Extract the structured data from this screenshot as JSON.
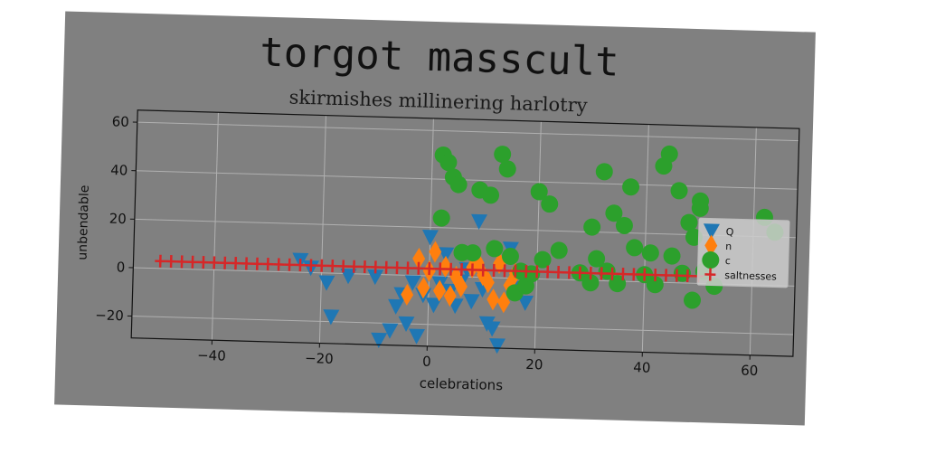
{
  "chart_data": {
    "type": "scatter",
    "title": "torgot masscult",
    "subtitle": "skirmishes millinering harlotry",
    "xlabel": "celebrations",
    "ylabel": "unbendable",
    "xlim": [
      -55,
      68
    ],
    "ylim": [
      -29,
      65
    ],
    "xticks": [
      -40,
      -20,
      0,
      20,
      40,
      60
    ],
    "yticks": [
      -20,
      0,
      20,
      40,
      60
    ],
    "grid": true,
    "legend_position": "right",
    "series": [
      {
        "name": "Q",
        "marker": "triangle-down",
        "color": "#1f77b4",
        "points": [
          [
            -24,
            5
          ],
          [
            -22,
            2
          ],
          [
            -19,
            -4
          ],
          [
            -18,
            -18
          ],
          [
            -15,
            -1
          ],
          [
            -10,
            -1
          ],
          [
            -9,
            -27
          ],
          [
            -7,
            -23
          ],
          [
            -6,
            -13
          ],
          [
            -5,
            -8
          ],
          [
            -4,
            -20
          ],
          [
            -3,
            -3
          ],
          [
            -2,
            -25
          ],
          [
            -1,
            -8
          ],
          [
            0,
            16
          ],
          [
            1,
            -12
          ],
          [
            2,
            -3
          ],
          [
            3,
            9
          ],
          [
            4,
            -6
          ],
          [
            5,
            -12
          ],
          [
            6,
            -2
          ],
          [
            7,
            3
          ],
          [
            8,
            -10
          ],
          [
            9,
            23
          ],
          [
            10,
            -5
          ],
          [
            11,
            -19
          ],
          [
            12,
            -21
          ],
          [
            13,
            -28
          ],
          [
            15,
            12
          ],
          [
            17,
            -4
          ],
          [
            18,
            -10
          ]
        ]
      },
      {
        "name": "n",
        "marker": "diamond",
        "color": "#ff7f0e",
        "points": [
          [
            -4,
            -8
          ],
          [
            -2,
            7
          ],
          [
            -1,
            -5
          ],
          [
            0,
            2
          ],
          [
            1,
            10
          ],
          [
            2,
            -6
          ],
          [
            3,
            4
          ],
          [
            4,
            -8
          ],
          [
            5,
            0
          ],
          [
            6,
            -4
          ],
          [
            8,
            4
          ],
          [
            9,
            6
          ],
          [
            10,
            1
          ],
          [
            11,
            -2
          ],
          [
            12,
            -9
          ],
          [
            13,
            6
          ],
          [
            14,
            -10
          ],
          [
            15,
            -3
          ],
          [
            16,
            2
          ]
        ]
      },
      {
        "name": "c",
        "marker": "circle",
        "color": "#2ca02c",
        "points": [
          [
            2,
            50
          ],
          [
            3,
            47
          ],
          [
            4,
            41
          ],
          [
            5,
            38
          ],
          [
            2,
            24
          ],
          [
            6,
            10
          ],
          [
            8,
            10
          ],
          [
            9,
            36
          ],
          [
            11,
            34
          ],
          [
            12,
            12
          ],
          [
            13,
            51
          ],
          [
            14,
            45
          ],
          [
            15,
            9
          ],
          [
            16,
            -6
          ],
          [
            17,
            3
          ],
          [
            18,
            -3
          ],
          [
            19,
            2
          ],
          [
            20,
            36
          ],
          [
            21,
            8
          ],
          [
            22,
            31
          ],
          [
            24,
            12
          ],
          [
            28,
            3
          ],
          [
            30,
            -1
          ],
          [
            30,
            22
          ],
          [
            31,
            9
          ],
          [
            32,
            45
          ],
          [
            33,
            4
          ],
          [
            34,
            28
          ],
          [
            35,
            -1
          ],
          [
            36,
            23
          ],
          [
            37,
            39
          ],
          [
            38,
            14
          ],
          [
            40,
            3
          ],
          [
            41,
            12
          ],
          [
            42,
            -1
          ],
          [
            43,
            48
          ],
          [
            44,
            53
          ],
          [
            45,
            11
          ],
          [
            46,
            38
          ],
          [
            47,
            4
          ],
          [
            48,
            25
          ],
          [
            49,
            19
          ],
          [
            50,
            34
          ],
          [
            50,
            31
          ],
          [
            51,
            5
          ],
          [
            52,
            9
          ],
          [
            53,
            -1
          ],
          [
            49,
            -7
          ],
          [
            62,
            28
          ],
          [
            64,
            22
          ]
        ]
      },
      {
        "name": "saltnesses",
        "marker": "plus",
        "color": "#d62728",
        "points": [
          [
            -50,
            3
          ],
          [
            -48,
            3
          ],
          [
            -46,
            3
          ],
          [
            -44,
            3
          ],
          [
            -42,
            3
          ],
          [
            -40,
            3
          ],
          [
            -38,
            3
          ],
          [
            -36,
            3
          ],
          [
            -34,
            3
          ],
          [
            -32,
            3
          ],
          [
            -30,
            3
          ],
          [
            -28,
            3
          ],
          [
            -26,
            3
          ],
          [
            -24,
            3
          ],
          [
            -22,
            3
          ],
          [
            -20,
            3
          ],
          [
            -18,
            3
          ],
          [
            -16,
            3
          ],
          [
            -14,
            3
          ],
          [
            -12,
            3
          ],
          [
            -10,
            3
          ],
          [
            -8,
            3
          ],
          [
            -6,
            3
          ],
          [
            -4,
            3
          ],
          [
            -2,
            3
          ],
          [
            0,
            3
          ],
          [
            2,
            3
          ],
          [
            4,
            3
          ],
          [
            6,
            3
          ],
          [
            8,
            3
          ],
          [
            10,
            3
          ],
          [
            12,
            3
          ],
          [
            14,
            3
          ],
          [
            16,
            3
          ],
          [
            18,
            3
          ],
          [
            20,
            3
          ],
          [
            22,
            3
          ],
          [
            24,
            3
          ],
          [
            26,
            3
          ],
          [
            28,
            3
          ],
          [
            30,
            3
          ],
          [
            32,
            3
          ],
          [
            34,
            3
          ],
          [
            36,
            3
          ],
          [
            38,
            3
          ],
          [
            40,
            3
          ],
          [
            42,
            3
          ],
          [
            44,
            3
          ],
          [
            46,
            3
          ],
          [
            48,
            3
          ],
          [
            50,
            3
          ]
        ]
      }
    ]
  }
}
